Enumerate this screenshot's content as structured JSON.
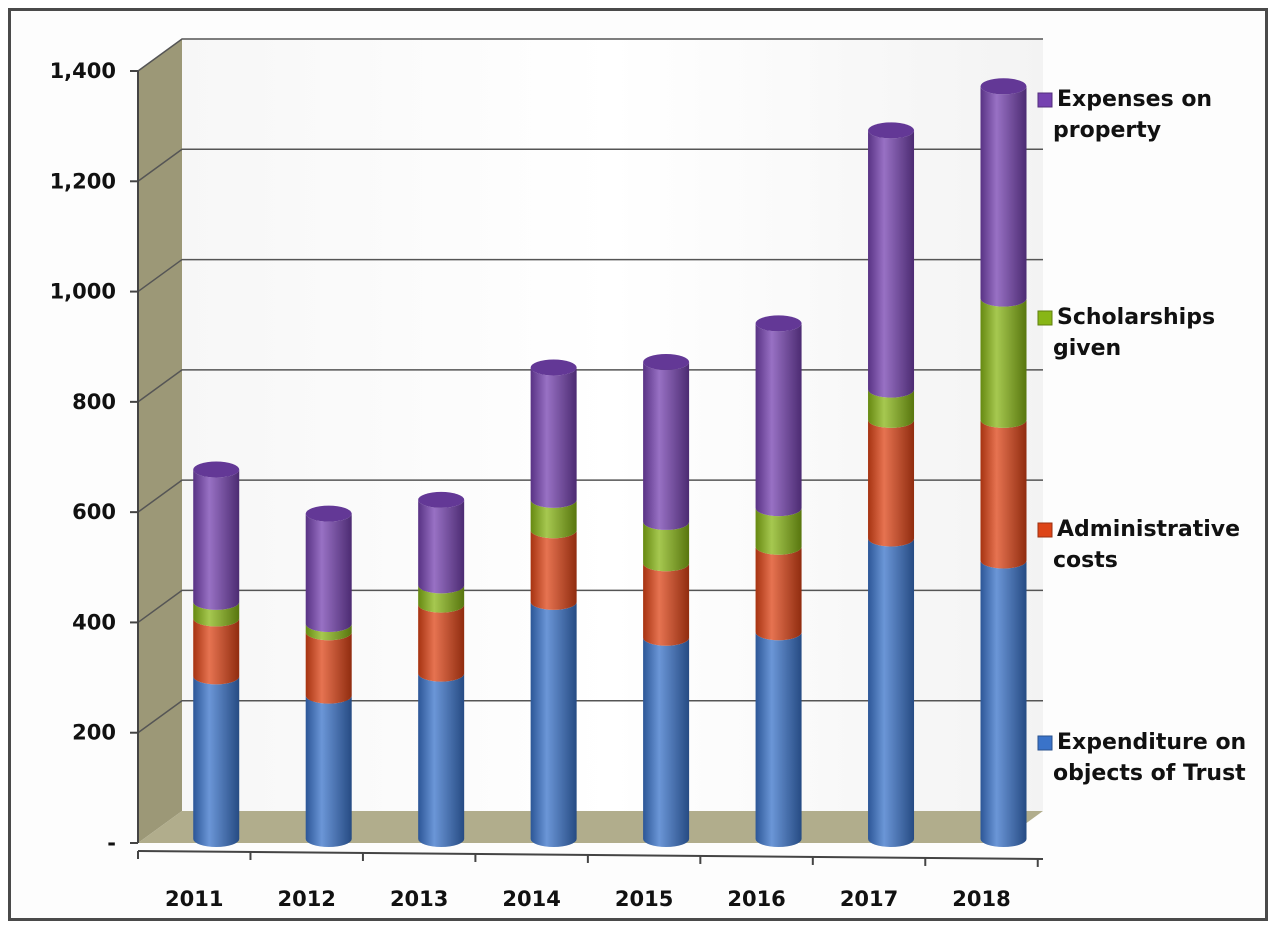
{
  "chart_data": {
    "type": "bar",
    "stacked": true,
    "style": "3d-cylinder",
    "title": "",
    "xlabel": "",
    "ylabel": "",
    "categories": [
      "2011",
      "2012",
      "2013",
      "2014",
      "2015",
      "2016",
      "2017",
      "2018"
    ],
    "ylim": [
      0,
      1400
    ],
    "y_ticks": [
      0,
      200,
      400,
      600,
      800,
      1000,
      1200,
      1400
    ],
    "y_tick_labels": [
      "-",
      "200",
      "400",
      "600",
      "800",
      "1,000",
      "1,200",
      "1,400"
    ],
    "grid": true,
    "legend_position": "right",
    "series": [
      {
        "name": "Expenditure on objects of Trust",
        "legend_lines": [
          "Expenditure on",
          "objects of Trust"
        ],
        "color": "#3a73c9",
        "values": [
          295,
          260,
          300,
          430,
          365,
          375,
          545,
          505
        ]
      },
      {
        "name": "Administrative costs",
        "legend_lines": [
          "Administrative",
          "costs"
        ],
        "color": "#dd4417",
        "values": [
          105,
          115,
          125,
          130,
          135,
          155,
          215,
          255
        ]
      },
      {
        "name": "Scholarships given",
        "legend_lines": [
          "Scholarships",
          "given"
        ],
        "color": "#88b616",
        "values": [
          30,
          15,
          35,
          55,
          75,
          70,
          55,
          220
        ]
      },
      {
        "name": "Expenses on property",
        "legend_lines": [
          "Expenses on",
          "property"
        ],
        "color": "#7542b0",
        "values": [
          240,
          200,
          155,
          240,
          290,
          335,
          470,
          385
        ]
      }
    ]
  }
}
